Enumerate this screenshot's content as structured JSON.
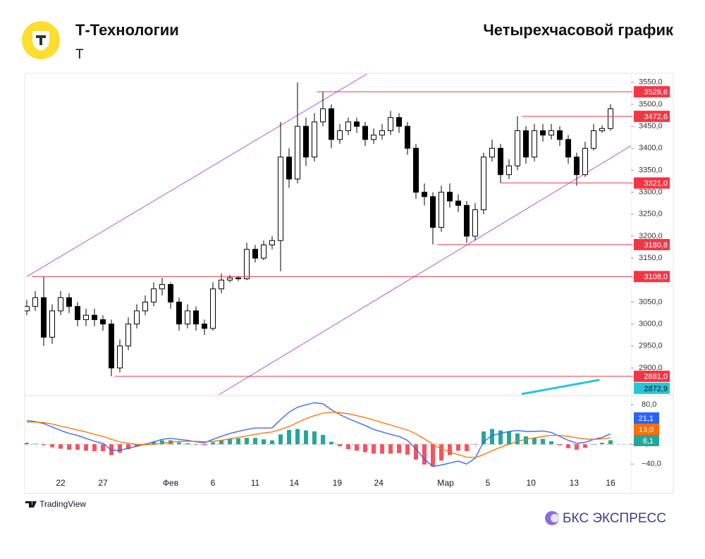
{
  "header": {
    "company": "Т-Технологии",
    "ticker": "T",
    "caption": "Четырехчасовой график"
  },
  "footer": {
    "source": "TradingView",
    "brand": "БКС ЭКСПРЕСС"
  },
  "chart_data": [
    {
      "type": "candlestick",
      "open": [
        3030,
        3040,
        3060,
        2970,
        3030,
        3060,
        3040,
        3010,
        3020,
        3010,
        3000,
        2900,
        2950,
        3000,
        3030,
        3050,
        3080,
        3090,
        3050,
        3000,
        3030,
        3000,
        2990,
        3080,
        3100,
        3105,
        3103,
        3170,
        3150,
        3180,
        3190,
        3380,
        3330,
        3450,
        3380,
        3460,
        3490,
        3420,
        3440,
        3460,
        3450,
        3420,
        3430,
        3440,
        3470,
        3450,
        3400,
        3300,
        3290,
        3220,
        3300,
        3280,
        3270,
        3200,
        3260,
        3380,
        3400,
        3340,
        3360,
        3440,
        3380,
        3440,
        3430,
        3440,
        3420,
        3380,
        3340,
        3400,
        3440,
        3445
      ],
      "high": [
        3055,
        3075,
        3108,
        3045,
        3075,
        3070,
        3050,
        3035,
        3035,
        3020,
        3010,
        2965,
        3015,
        3045,
        3065,
        3095,
        3105,
        3095,
        3060,
        3045,
        3040,
        3010,
        3095,
        3115,
        3112,
        3110,
        3185,
        3180,
        3190,
        3200,
        3460,
        3400,
        3550,
        3470,
        3480,
        3528,
        3500,
        3455,
        3470,
        3470,
        3460,
        3445,
        3455,
        3485,
        3480,
        3460,
        3410,
        3320,
        3300,
        3315,
        3320,
        3295,
        3280,
        3275,
        3390,
        3420,
        3410,
        3375,
        3473,
        3450,
        3455,
        3455,
        3455,
        3450,
        3430,
        3390,
        3415,
        3455,
        3452,
        3500
      ],
      "low": [
        3020,
        3030,
        2950,
        2955,
        3020,
        3025,
        2995,
        2995,
        2995,
        2985,
        2881,
        2890,
        2940,
        2990,
        3020,
        3040,
        3065,
        3035,
        2985,
        2990,
        2985,
        2975,
        2985,
        3070,
        3095,
        3098,
        3100,
        3140,
        3145,
        3170,
        3120,
        3310,
        3320,
        3360,
        3370,
        3450,
        3400,
        3410,
        3430,
        3435,
        3405,
        3410,
        3420,
        3430,
        3435,
        3385,
        3285,
        3270,
        3181,
        3210,
        3265,
        3255,
        3185,
        3190,
        3250,
        3370,
        3321,
        3330,
        3350,
        3365,
        3370,
        3415,
        3420,
        3405,
        3365,
        3315,
        3335,
        3395,
        3435,
        3440
      ],
      "close": [
        3040,
        3060,
        2970,
        3030,
        3060,
        3040,
        3010,
        3020,
        3010,
        3000,
        2900,
        2950,
        3000,
        3030,
        3050,
        3080,
        3090,
        3050,
        3000,
        3030,
        3000,
        2990,
        3080,
        3100,
        3105,
        3103,
        3170,
        3150,
        3180,
        3190,
        3380,
        3330,
        3450,
        3380,
        3460,
        3490,
        3420,
        3440,
        3460,
        3450,
        3420,
        3430,
        3440,
        3470,
        3450,
        3400,
        3300,
        3290,
        3220,
        3300,
        3280,
        3270,
        3200,
        3260,
        3380,
        3400,
        3340,
        3360,
        3440,
        3380,
        3440,
        3430,
        3440,
        3420,
        3380,
        3340,
        3400,
        3440,
        3445,
        3490
      ],
      "up_color": "#ffffff",
      "down_color": "#000000",
      "wick_color": "#000000",
      "ylim": [
        2839,
        3569
      ],
      "yticks": [
        {
          "value": 3550,
          "label": "3550,0"
        },
        {
          "value": 3500,
          "label": "3500,0"
        },
        {
          "value": 3450,
          "label": "3450,0"
        },
        {
          "value": 3400,
          "label": "3400,0"
        },
        {
          "value": 3350,
          "label": "3350,0"
        },
        {
          "value": 3300,
          "label": "3300,0"
        },
        {
          "value": 3250,
          "label": "3250,0"
        },
        {
          "value": 3200,
          "label": "3200,0"
        },
        {
          "value": 3150,
          "label": "3150,0"
        },
        {
          "value": 3050,
          "label": "3050,0"
        },
        {
          "value": 3000,
          "label": "3000,0"
        },
        {
          "value": 2950,
          "label": "2950,0"
        },
        {
          "value": 2900,
          "label": "2900,0"
        }
      ],
      "levels": [
        {
          "value": 3528.6,
          "label": "3528,6",
          "from": 34.3
        },
        {
          "value": 3472.6,
          "label": "3472,6",
          "from": 58.5
        },
        {
          "value": 3321,
          "label": "3321,0",
          "from": 56
        },
        {
          "value": 3180.8,
          "label": "3180,8",
          "from": 48.5
        },
        {
          "value": 3108,
          "label": "3108,0",
          "from": 0.6
        },
        {
          "value": 2881,
          "label": "2881,0",
          "from": 10.4
        }
      ],
      "level_color": "#f23645",
      "channels": [
        {
          "x": [
            0,
            40.2
          ],
          "y": [
            3108,
            3569
          ]
        },
        {
          "x": [
            22.7,
            71.8
          ],
          "y": [
            2839,
            3410
          ]
        }
      ],
      "channel_color": "#c04fd6",
      "trend": {
        "x": [
          58.5,
          67.7
        ],
        "y": [
          2839,
          2872.9
        ],
        "label": "2872,9",
        "color": "#26c6da"
      }
    },
    {
      "type": "macd",
      "ylim": [
        -71,
        96
      ],
      "yticks": [
        {
          "value": 80,
          "label": "80,0"
        },
        {
          "value": 0,
          "label": "0,0"
        },
        {
          "value": -40,
          "label": "−40,0"
        }
      ],
      "xticks": [
        {
          "value": 4,
          "label": "22"
        },
        {
          "value": 9,
          "label": "27"
        },
        {
          "value": 17,
          "label": "Фев"
        },
        {
          "value": 22,
          "label": "6"
        },
        {
          "value": 27,
          "label": "11"
        },
        {
          "value": 31.6,
          "label": "14"
        },
        {
          "value": 36.7,
          "label": "19"
        },
        {
          "value": 41.6,
          "label": "24"
        },
        {
          "value": 49.5,
          "label": "Мар"
        },
        {
          "value": 54.5,
          "label": "5"
        },
        {
          "value": 59.6,
          "label": "10"
        },
        {
          "value": 64.7,
          "label": "13"
        },
        {
          "value": 69,
          "label": "16"
        }
      ],
      "series": [
        {
          "style": "histogram",
          "color": "#26a69a",
          "negative_color": "#f7525f",
          "values": [
            3,
            1,
            -2,
            -6,
            -9,
            -11,
            -11,
            -13,
            -14,
            -14,
            -22,
            -17,
            -10,
            -4,
            1,
            5,
            8,
            8,
            4,
            2,
            -1,
            -2,
            4,
            8,
            11,
            12,
            13,
            13,
            10,
            8,
            20,
            29,
            31,
            28,
            26,
            19,
            5,
            -4,
            -10,
            -13,
            -16,
            -19,
            -19,
            -19,
            -18,
            -21,
            -31,
            -41,
            -45,
            -33,
            -22,
            -13,
            -14,
            -1,
            26,
            31,
            28,
            26,
            22,
            16,
            13,
            11,
            6,
            -2,
            -8,
            -11,
            -7,
            0,
            3,
            8.1
          ],
          "value_labels": [
            null,
            null,
            null,
            null,
            null,
            null,
            null,
            null,
            null,
            null,
            null,
            null,
            null,
            null,
            null,
            null,
            null,
            null,
            null,
            null,
            null,
            null,
            null,
            null,
            null,
            null,
            null,
            null,
            null,
            null,
            null,
            null,
            null,
            null,
            null,
            null,
            null,
            null,
            null,
            null,
            null,
            null,
            null,
            null,
            null,
            null,
            null,
            null,
            null,
            null,
            null,
            null,
            null,
            null,
            null,
            null,
            null,
            null,
            null,
            null,
            null,
            null,
            null,
            null,
            null,
            null,
            null,
            null,
            null,
            "8,1"
          ]
        },
        {
          "style": "line",
          "color": "#2962ff",
          "values": [
            48,
            46,
            42,
            35,
            28,
            22,
            18,
            12,
            6,
            2,
            -12,
            -12,
            -8,
            -4,
            0,
            5,
            10,
            12,
            10,
            8,
            5,
            3,
            10,
            16,
            22,
            26,
            30,
            33,
            33,
            33,
            50,
            65,
            75,
            80,
            84,
            82,
            70,
            60,
            52,
            45,
            38,
            30,
            25,
            20,
            16,
            8,
            -10,
            -30,
            -45,
            -42,
            -38,
            -34,
            -40,
            -28,
            5,
            18,
            22,
            26,
            28,
            26,
            26,
            27,
            24,
            16,
            8,
            2,
            4,
            10,
            14,
            21.1
          ],
          "value_labels": [
            null,
            null,
            null,
            null,
            null,
            null,
            null,
            null,
            null,
            null,
            null,
            null,
            null,
            null,
            null,
            null,
            null,
            null,
            null,
            null,
            null,
            null,
            null,
            null,
            null,
            null,
            null,
            null,
            null,
            null,
            null,
            null,
            null,
            null,
            null,
            null,
            null,
            null,
            null,
            null,
            null,
            null,
            null,
            null,
            null,
            null,
            null,
            null,
            null,
            null,
            null,
            null,
            null,
            null,
            null,
            null,
            null,
            null,
            null,
            null,
            null,
            null,
            null,
            null,
            null,
            null,
            null,
            null,
            null,
            "21,1"
          ]
        },
        {
          "style": "line",
          "color": "#ff6d00",
          "values": [
            45,
            45,
            44,
            41,
            37,
            33,
            29,
            25,
            20,
            16,
            10,
            5,
            2,
            0,
            -1,
            0,
            2,
            4,
            6,
            6,
            6,
            5,
            6,
            8,
            11,
            14,
            17,
            20,
            23,
            25,
            30,
            36,
            44,
            52,
            58,
            63,
            65,
            64,
            62,
            58,
            54,
            49,
            44,
            39,
            34,
            29,
            21,
            11,
            0,
            -9,
            -16,
            -21,
            -26,
            -27,
            -21,
            -13,
            -6,
            0,
            6,
            10,
            13,
            16,
            18,
            18,
            16,
            13,
            11,
            10,
            11,
            13.0
          ],
          "value_labels": [
            null,
            null,
            null,
            null,
            null,
            null,
            null,
            null,
            null,
            null,
            null,
            null,
            null,
            null,
            null,
            null,
            null,
            null,
            null,
            null,
            null,
            null,
            null,
            null,
            null,
            null,
            null,
            null,
            null,
            null,
            null,
            null,
            null,
            null,
            null,
            null,
            null,
            null,
            null,
            null,
            null,
            null,
            null,
            null,
            null,
            null,
            null,
            null,
            null,
            null,
            null,
            null,
            null,
            null,
            null,
            null,
            null,
            null,
            null,
            null,
            null,
            null,
            null,
            null,
            null,
            null,
            null,
            null,
            null,
            "13,0"
          ]
        }
      ]
    }
  ]
}
